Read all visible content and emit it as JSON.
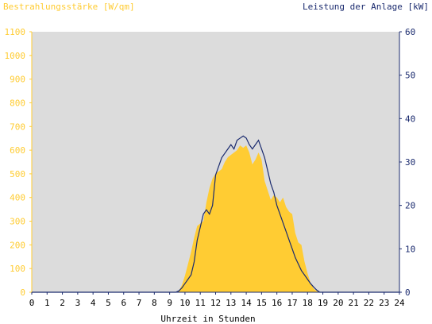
{
  "chart_data": {
    "type": "area",
    "left_axis_label": "Bestrahlungsstärke [W/qm]",
    "right_axis_label": "Leistung der Anlage [kW]",
    "xlabel": "Uhrzeit in Stunden",
    "xlim": [
      0,
      24
    ],
    "x_ticks": [
      0,
      1,
      2,
      3,
      4,
      5,
      6,
      7,
      8,
      9,
      10,
      11,
      12,
      13,
      14,
      15,
      16,
      17,
      18,
      19,
      20,
      21,
      22,
      23,
      24
    ],
    "y_left_lim": [
      0,
      1100
    ],
    "y_left_ticks": [
      0,
      100,
      200,
      300,
      400,
      500,
      600,
      700,
      800,
      900,
      1000,
      1100
    ],
    "y_right_lim": [
      0,
      60
    ],
    "y_right_ticks": [
      0,
      10,
      20,
      30,
      40,
      50,
      60
    ],
    "grid": false,
    "colors": {
      "irradiance": "#ffcc33",
      "power": "#1a2a6e",
      "plot_bg": "#dcdcdc"
    },
    "series": [
      {
        "key": "irradiance",
        "axis": "left",
        "x": [
          0,
          9.4,
          9.6,
          9.8,
          10,
          10.2,
          10.4,
          10.6,
          10.8,
          11,
          11.2,
          11.4,
          11.6,
          11.8,
          12,
          12.2,
          12.4,
          12.6,
          12.8,
          13,
          13.2,
          13.4,
          13.6,
          13.8,
          14,
          14.2,
          14.4,
          14.6,
          14.8,
          15,
          15.2,
          15.4,
          15.6,
          15.8,
          16,
          16.2,
          16.4,
          16.6,
          16.8,
          17,
          17.2,
          17.4,
          17.6,
          17.8,
          18,
          18.2,
          18.4,
          18.6,
          18.8,
          19,
          24
        ],
        "y": [
          0,
          0,
          5,
          30,
          70,
          120,
          170,
          230,
          280,
          290,
          300,
          380,
          440,
          480,
          500,
          510,
          520,
          550,
          570,
          580,
          590,
          600,
          620,
          610,
          620,
          590,
          540,
          560,
          590,
          560,
          470,
          430,
          390,
          410,
          400,
          380,
          400,
          360,
          340,
          330,
          250,
          210,
          200,
          130,
          80,
          40,
          15,
          5,
          0,
          0,
          0
        ]
      },
      {
        "key": "power",
        "axis": "right",
        "x": [
          0,
          9.4,
          9.6,
          9.8,
          10,
          10.2,
          10.4,
          10.6,
          10.8,
          11,
          11.2,
          11.4,
          11.6,
          11.8,
          12,
          12.2,
          12.4,
          12.6,
          12.8,
          13,
          13.2,
          13.4,
          13.6,
          13.8,
          14,
          14.2,
          14.4,
          14.6,
          14.8,
          15,
          15.2,
          15.4,
          15.6,
          15.8,
          16,
          16.2,
          16.4,
          16.6,
          16.8,
          17,
          17.2,
          17.4,
          17.6,
          17.8,
          18,
          18.2,
          18.4,
          18.6,
          18.8,
          19,
          24
        ],
        "y": [
          0,
          0,
          0.3,
          1,
          2,
          3,
          4,
          7,
          12,
          15,
          18,
          19,
          18,
          20,
          27,
          29,
          31,
          32,
          33,
          34,
          33,
          35,
          35.5,
          36,
          35.5,
          34,
          33,
          34,
          35,
          33,
          31,
          28,
          25,
          23,
          20,
          18,
          16,
          14,
          12,
          10,
          8,
          6.5,
          5,
          4,
          3,
          2,
          1.2,
          0.5,
          0,
          0,
          0
        ]
      }
    ]
  }
}
